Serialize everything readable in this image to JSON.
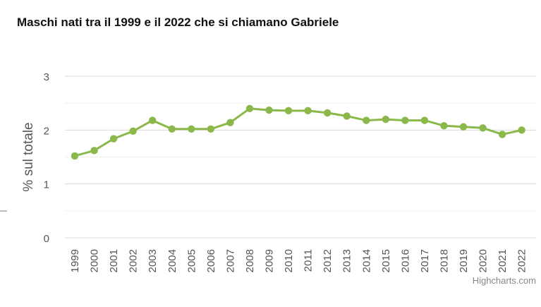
{
  "chart_data": {
    "type": "line",
    "title": "Maschi nati tra il 1999 e il 2022 che si chiamano Gabriele",
    "xlabel": "",
    "ylabel": "% sul totale",
    "categories": [
      "1999",
      "2000",
      "2001",
      "2002",
      "2003",
      "2004",
      "2005",
      "2006",
      "2007",
      "2008",
      "2009",
      "2010",
      "2011",
      "2012",
      "2013",
      "2014",
      "2015",
      "2016",
      "2017",
      "2018",
      "2019",
      "2020",
      "2021",
      "2022"
    ],
    "series": [
      {
        "values": [
          1.52,
          1.62,
          1.84,
          1.98,
          2.18,
          2.02,
          2.02,
          2.02,
          2.14,
          2.4,
          2.37,
          2.36,
          2.36,
          2.32,
          2.26,
          2.18,
          2.2,
          2.18,
          2.18,
          2.08,
          2.06,
          2.04,
          1.92,
          2.0
        ]
      }
    ],
    "yticks": [
      "0",
      "1",
      "2",
      "3"
    ],
    "ylim": [
      0,
      3
    ],
    "grid": true,
    "legend": "none",
    "line_color": "#8ab84a"
  },
  "credits": "Highcharts.com"
}
